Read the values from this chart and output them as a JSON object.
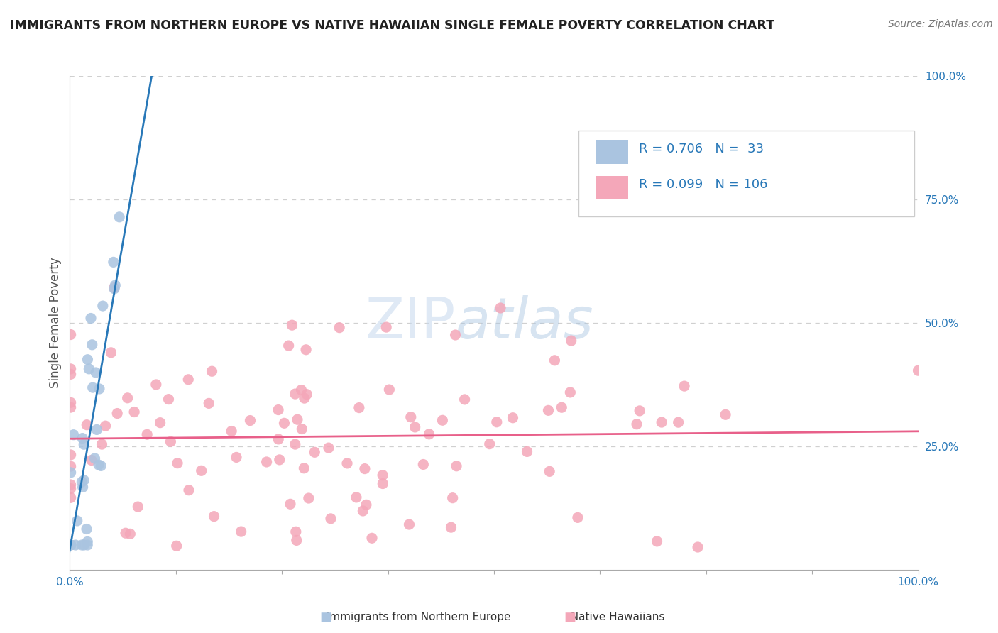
{
  "title": "IMMIGRANTS FROM NORTHERN EUROPE VS NATIVE HAWAIIAN SINGLE FEMALE POVERTY CORRELATION CHART",
  "source": "Source: ZipAtlas.com",
  "ylabel": "Single Female Poverty",
  "watermark1": "ZIP",
  "watermark2": "atlas",
  "blue_R": 0.706,
  "blue_N": 33,
  "pink_R": 0.099,
  "pink_N": 106,
  "blue_color": "#aac4e0",
  "pink_color": "#f4a7b9",
  "blue_line_color": "#2878b8",
  "pink_line_color": "#e8608a",
  "legend_text_color": "#2878b8",
  "grid_color": "#d0d0d0",
  "background_color": "#ffffff",
  "title_color": "#222222",
  "source_color": "#777777",
  "right_tick_color": "#2878b8",
  "bottom_tick_color": "#2878b8",
  "watermark_color1": "#c5d8ee",
  "watermark_color2": "#a8c4e0"
}
